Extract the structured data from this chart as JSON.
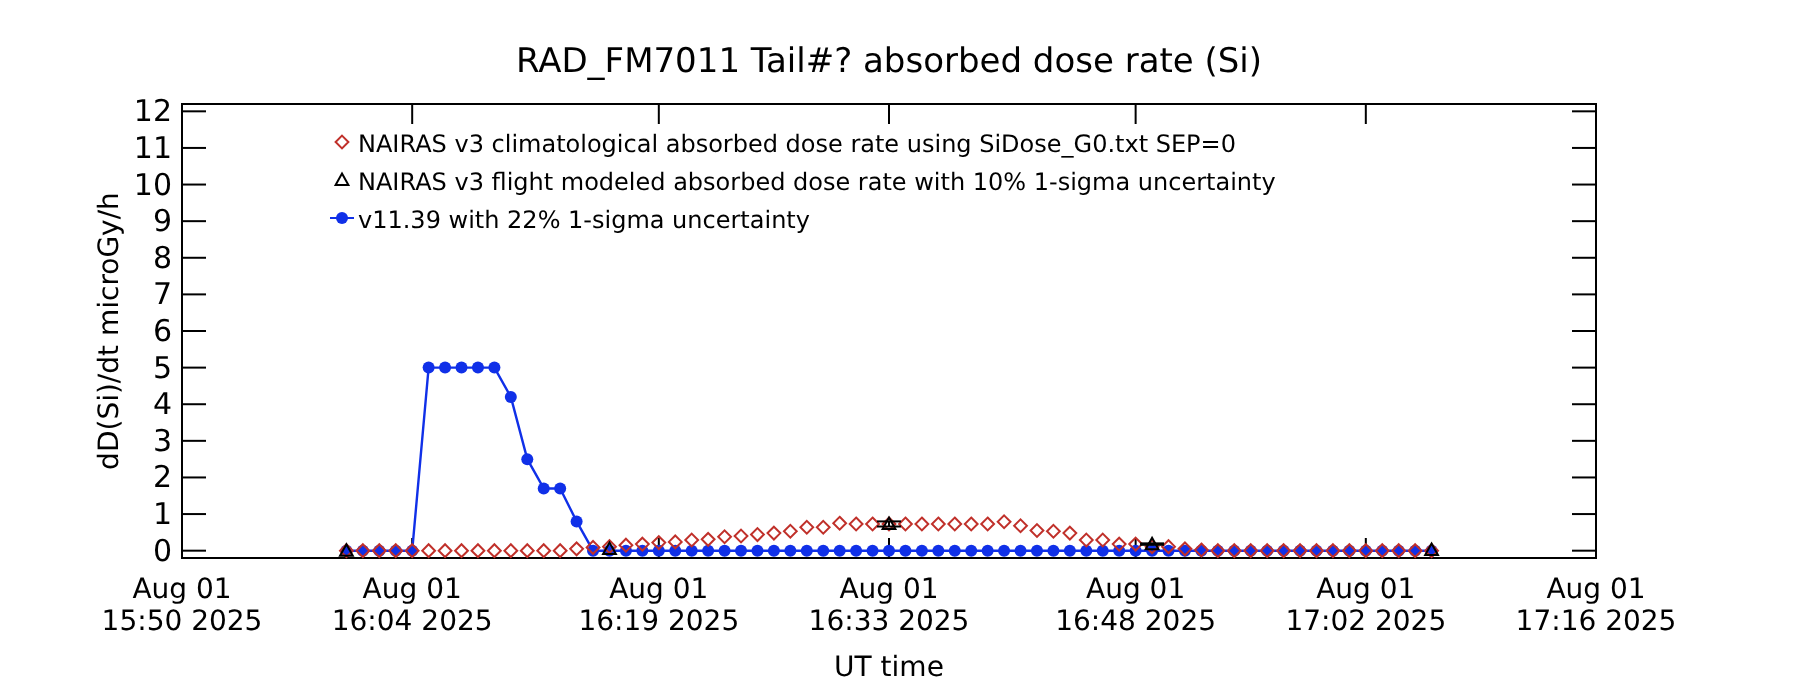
{
  "chart_data": {
    "type": "line",
    "title": "RAD_FM7011  Tail#? absorbed dose rate (Si)",
    "xlabel": "UT time",
    "ylabel": "dD(Si)/dt microGy/h",
    "x": [
      "2025-08-01T16:00",
      "2025-08-01T16:01",
      "2025-08-01T16:02",
      "2025-08-01T16:03",
      "2025-08-01T16:04",
      "2025-08-01T16:05",
      "2025-08-01T16:06",
      "2025-08-01T16:07",
      "2025-08-01T16:08",
      "2025-08-01T16:09",
      "2025-08-01T16:10",
      "2025-08-01T16:11",
      "2025-08-01T16:12",
      "2025-08-01T16:13",
      "2025-08-01T16:14",
      "2025-08-01T16:15",
      "2025-08-01T16:16",
      "2025-08-01T16:17",
      "2025-08-01T16:18",
      "2025-08-01T16:19",
      "2025-08-01T16:20",
      "2025-08-01T16:21",
      "2025-08-01T16:22",
      "2025-08-01T16:23",
      "2025-08-01T16:24",
      "2025-08-01T16:25",
      "2025-08-01T16:26",
      "2025-08-01T16:27",
      "2025-08-01T16:28",
      "2025-08-01T16:29",
      "2025-08-01T16:30",
      "2025-08-01T16:31",
      "2025-08-01T16:32",
      "2025-08-01T16:33",
      "2025-08-01T16:34",
      "2025-08-01T16:35",
      "2025-08-01T16:36",
      "2025-08-01T16:37",
      "2025-08-01T16:38",
      "2025-08-01T16:39",
      "2025-08-01T16:40",
      "2025-08-01T16:41",
      "2025-08-01T16:42",
      "2025-08-01T16:43",
      "2025-08-01T16:44",
      "2025-08-01T16:45",
      "2025-08-01T16:46",
      "2025-08-01T16:47",
      "2025-08-01T16:48",
      "2025-08-01T16:49",
      "2025-08-01T16:50",
      "2025-08-01T16:51",
      "2025-08-01T16:52",
      "2025-08-01T16:53",
      "2025-08-01T16:54",
      "2025-08-01T16:55",
      "2025-08-01T16:56",
      "2025-08-01T16:57",
      "2025-08-01T16:58",
      "2025-08-01T16:59",
      "2025-08-01T17:00",
      "2025-08-01T17:01",
      "2025-08-01T17:02",
      "2025-08-01T17:03",
      "2025-08-01T17:04",
      "2025-08-01T17:05",
      "2025-08-01T17:06"
    ],
    "series": [
      {
        "name": "NAIRAS v3 climatological absorbed dose rate using SiDose_G0.txt SEP=0",
        "type": "scatter",
        "marker": "diamond",
        "color": "#c0302a",
        "values": [
          0,
          0,
          0,
          0,
          0,
          0,
          0,
          0,
          0,
          0,
          0,
          0,
          0,
          0,
          0.05,
          0.09,
          0.11,
          0.15,
          0.18,
          0.22,
          0.24,
          0.29,
          0.31,
          0.38,
          0.4,
          0.44,
          0.48,
          0.53,
          0.64,
          0.64,
          0.75,
          0.73,
          0.73,
          0.73,
          0.73,
          0.73,
          0.73,
          0.73,
          0.73,
          0.73,
          0.79,
          0.68,
          0.55,
          0.53,
          0.48,
          0.29,
          0.29,
          0.18,
          0.18,
          0.11,
          0.11,
          0.05,
          0.02,
          0,
          0,
          0,
          0,
          0,
          0,
          0,
          0,
          0,
          0,
          0,
          0,
          0,
          0
        ]
      },
      {
        "name": "NAIRAS v3 flight modeled absorbed dose rate with 10% 1-sigma uncertainty",
        "type": "scatter",
        "marker": "triangle",
        "color": "#000000",
        "x": [
          "2025-08-01T16:00",
          "2025-08-01T16:16",
          "2025-08-01T16:33",
          "2025-08-01T16:49",
          "2025-08-01T17:06"
        ],
        "values": [
          0,
          0.05,
          0.73,
          0.18,
          0.02
        ],
        "errors": [
          null,
          null,
          0.07,
          0.02,
          null
        ]
      },
      {
        "name": "v11.39 with 22% 1-sigma uncertainty",
        "marker": "circle",
        "line_style": "solid",
        "color": "#1030e8",
        "values": [
          0,
          0,
          0,
          0,
          0,
          5,
          5,
          5,
          5,
          5,
          4.2,
          2.5,
          1.7,
          1.7,
          0.8,
          0,
          0,
          0,
          0,
          0,
          0,
          0,
          0,
          0,
          0,
          0,
          0,
          0,
          0,
          0,
          0,
          0,
          0,
          0,
          0,
          0,
          0,
          0,
          0,
          0,
          0,
          0,
          0,
          0,
          0,
          0,
          0,
          0,
          0,
          0,
          0,
          0,
          0,
          0,
          0,
          0,
          0,
          0,
          0,
          0,
          0,
          0,
          0,
          0,
          0,
          0,
          0
        ]
      }
    ],
    "xlim": [
      "2025-08-01T15:50",
      "2025-08-01T17:16"
    ],
    "xticks": [
      {
        "value": "2025-08-01T15:50",
        "label": "Aug 01\n15:50 2025"
      },
      {
        "value": "2025-08-01T16:04",
        "label": "Aug 01\n16:04 2025"
      },
      {
        "value": "2025-08-01T16:19",
        "label": "Aug 01\n16:19 2025"
      },
      {
        "value": "2025-08-01T16:33",
        "label": "Aug 01\n16:33 2025"
      },
      {
        "value": "2025-08-01T16:48",
        "label": "Aug 01\n16:48 2025"
      },
      {
        "value": "2025-08-01T17:02",
        "label": "Aug 01\n17:02 2025"
      },
      {
        "value": "2025-08-01T17:16",
        "label": "Aug 01\n17:16 2025"
      }
    ],
    "ylim": [
      -0.2,
      12.2
    ],
    "yticks": [
      0,
      1,
      2,
      3,
      4,
      5,
      6,
      7,
      8,
      9,
      10,
      11,
      12
    ],
    "grid": false,
    "legend": "top left"
  }
}
